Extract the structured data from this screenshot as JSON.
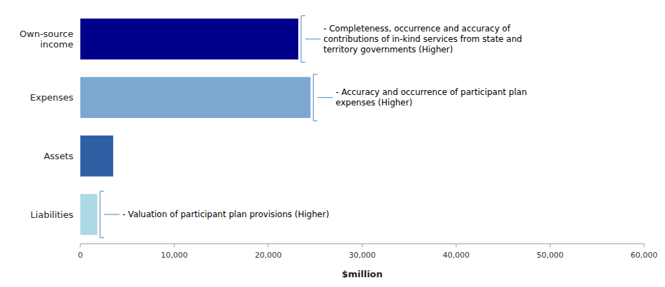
{
  "chart_data": {
    "type": "bar",
    "orientation": "horizontal",
    "categories": [
      "Own-source\nincome",
      "Expenses",
      "Assets",
      "Liabilities"
    ],
    "values": [
      23200,
      24500,
      3500,
      1800
    ],
    "colors": [
      "#00008B",
      "#7BA7D0",
      "#2E5FA3",
      "#ADD8E6"
    ],
    "xlabel": "$million",
    "xlim": [
      0,
      60000
    ],
    "xticks": [
      0,
      {
        "value": 10000,
        "label": "10,000"
      },
      {
        "value": 20000,
        "label": "20,000"
      },
      {
        "value": 30000,
        "label": "30,000"
      },
      {
        "value": 40000,
        "label": "40,000"
      },
      {
        "value": 50000,
        "label": "50,000"
      },
      {
        "value": 60000,
        "label": "60,000"
      }
    ],
    "grid": false,
    "annotations": [
      {
        "text": "- Completeness, occurrence and accuracy of\ncontributions of in-kind services from state and\nterritory governments (Higher)",
        "category": "Own-source\nincome"
      },
      {
        "text": "- Accuracy and occurrence of participant plan\nexpenses (Higher)",
        "category": "Expenses"
      },
      {
        "text": "- Valuation of participant plan provisions (Higher)",
        "category": "Liabilities"
      }
    ]
  }
}
